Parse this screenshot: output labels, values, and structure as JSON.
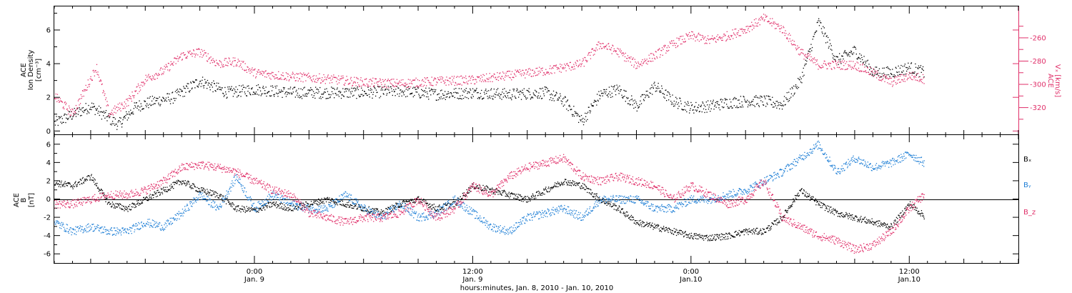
{
  "colors": {
    "black": "#000000",
    "blue": "#1f7fd6",
    "pink": "#e0306a"
  },
  "xaxis": {
    "title": "hours:minutes, Jan. 8, 2010 - Jan. 10, 2010",
    "ticks": [
      {
        "t": 24,
        "time": "0:00",
        "date": "Jan. 9"
      },
      {
        "t": 36,
        "time": "12:00",
        "date": "Jan. 9"
      },
      {
        "t": 48,
        "time": "0:00",
        "date": "Jan.10"
      },
      {
        "t": 60,
        "time": "12:00",
        "date": "Jan.10"
      }
    ],
    "range_hours": [
      13.0,
      66.0
    ]
  },
  "panel1": {
    "ylabel_line1": "ACE",
    "ylabel_line2": "Ion Density",
    "ylabel_units": "[cm⁻³]",
    "ylim": [
      -0.2,
      7.4
    ],
    "yticks": [
      "0",
      "2",
      "4",
      "6"
    ],
    "right_ylabel_line1": "ACE",
    "right_ylabel_line2": "Vₓ [km/s]",
    "right_ylim": [
      -233,
      -343
    ],
    "right_yticks": [
      "-260",
      "-280",
      "-300",
      "-320"
    ]
  },
  "panel2": {
    "ylabel_line1": "ACE",
    "ylabel_line2": "B",
    "ylabel_units": "[nT]",
    "ylim": [
      -7,
      7
    ],
    "yticks": [
      "6",
      "4",
      "2",
      "0",
      "-2",
      "-4",
      "-6"
    ],
    "legend": [
      {
        "label": "Bₓ",
        "color": "#000000"
      },
      {
        "label": "Bᵧ",
        "color": "#1f7fd6"
      },
      {
        "label": "B_z",
        "color": "#e0306a"
      }
    ],
    "legend_placement": "right"
  },
  "chart_data": [
    {
      "type": "scatter",
      "title": "",
      "xlabel": "hours:minutes, Jan. 8, 2010 - Jan. 10, 2010",
      "ylabel": "ACE Ion Density [cm⁻³]",
      "y2label": "ACE Vx [km/s]",
      "ylim": [
        -0.2,
        7.4
      ],
      "y2lim": [
        -343,
        -233
      ],
      "series": [
        {
          "name": "Ion Density",
          "axis": "left",
          "x_hours": [
            13.0,
            15.0,
            16.5,
            17.5,
            18.5,
            19.5,
            21.0,
            22.5,
            24.0,
            26.0,
            28.0,
            30.0,
            32.0,
            34.0,
            36.0,
            38.0,
            40.0,
            41.0,
            42.0,
            43.0,
            44.0,
            45.0,
            46.0,
            47.0,
            48.0,
            49.0,
            50.0,
            51.0,
            52.0,
            53.0,
            54.0,
            55.0,
            56.0,
            57.0,
            58.0,
            59.0,
            60.0,
            60.8
          ],
          "values": [
            0.5,
            1.5,
            0.4,
            1.5,
            1.8,
            2.0,
            3.0,
            2.3,
            2.5,
            2.3,
            2.3,
            2.3,
            2.4,
            2.2,
            2.3,
            2.2,
            2.3,
            1.8,
            0.6,
            2.2,
            2.5,
            1.5,
            2.7,
            1.8,
            1.4,
            1.5,
            1.7,
            1.8,
            1.8,
            1.6,
            3.0,
            6.5,
            4.2,
            4.8,
            3.5,
            3.5,
            3.8,
            3.5
          ]
        },
        {
          "name": "Vx",
          "axis": "right",
          "x_hours": [
            13.0,
            14.0,
            15.3,
            16.0,
            17.0,
            18.0,
            19.0,
            20.0,
            21.0,
            22.0,
            23.0,
            24.0,
            26.0,
            28.0,
            30.0,
            32.0,
            34.0,
            36.0,
            38.0,
            40.0,
            42.0,
            43.0,
            44.0,
            45.0,
            46.0,
            47.0,
            48.0,
            49.0,
            50.0,
            51.0,
            52.0,
            53.0,
            54.0,
            55.0,
            56.0,
            57.0,
            58.0,
            59.0,
            60.0,
            60.8
          ],
          "values": [
            -310,
            -325,
            -285,
            -325,
            -315,
            -295,
            -288,
            -275,
            -272,
            -282,
            -280,
            -290,
            -293,
            -295,
            -298,
            -299,
            -297,
            -296,
            -292,
            -288,
            -282,
            -265,
            -272,
            -283,
            -275,
            -265,
            -258,
            -262,
            -258,
            -252,
            -243,
            -252,
            -272,
            -283,
            -283,
            -283,
            -290,
            -298,
            -292,
            -295
          ]
        }
      ]
    },
    {
      "type": "scatter",
      "title": "",
      "xlabel": "hours:minutes, Jan. 8, 2010 - Jan. 10, 2010",
      "ylabel": "ACE B [nT]",
      "ylim": [
        -7,
        7
      ],
      "grid": false,
      "zero_line": true,
      "series": [
        {
          "name": "Bx",
          "x_hours": [
            13.0,
            14.0,
            15.0,
            16.0,
            17.0,
            18.0,
            19.0,
            20.0,
            21.0,
            22.0,
            23.0,
            24.0,
            25.0,
            26.0,
            27.0,
            28.0,
            29.0,
            30.0,
            31.0,
            32.0,
            33.0,
            34.0,
            35.0,
            36.0,
            37.0,
            38.0,
            39.0,
            40.0,
            41.0,
            42.0,
            43.0,
            44.0,
            45.0,
            46.0,
            47.0,
            48.0,
            49.0,
            50.0,
            51.0,
            52.0,
            53.0,
            54.0,
            55.0,
            56.0,
            57.0,
            58.0,
            59.0,
            60.0,
            60.8
          ],
          "values": [
            1.8,
            1.5,
            2.5,
            -0.5,
            -1.0,
            0.0,
            1.0,
            2.0,
            1.0,
            0.5,
            -1.0,
            -1.2,
            -0.5,
            -1.0,
            -0.5,
            0.0,
            -0.5,
            -1.0,
            -1.5,
            -0.5,
            0.0,
            -1.0,
            -0.5,
            1.5,
            1.0,
            0.5,
            0.0,
            1.0,
            2.0,
            1.5,
            0.0,
            -1.0,
            -2.5,
            -3.0,
            -3.5,
            -4.0,
            -4.2,
            -4.0,
            -3.5,
            -3.5,
            -2.0,
            1.0,
            -0.5,
            -1.5,
            -2.0,
            -2.5,
            -3.0,
            -0.5,
            -1.8
          ]
        },
        {
          "name": "By",
          "x_hours": [
            13.0,
            14.0,
            15.0,
            16.0,
            17.0,
            18.0,
            19.0,
            20.0,
            21.0,
            22.0,
            23.0,
            24.0,
            25.0,
            26.0,
            27.0,
            28.0,
            29.0,
            30.0,
            31.0,
            32.0,
            33.0,
            34.0,
            35.0,
            36.0,
            37.0,
            38.0,
            39.0,
            40.0,
            41.0,
            42.0,
            43.0,
            44.0,
            45.0,
            46.0,
            47.0,
            48.0,
            49.0,
            50.0,
            51.0,
            52.0,
            53.0,
            54.0,
            55.0,
            56.0,
            57.0,
            58.0,
            59.0,
            60.0,
            60.8
          ],
          "values": [
            -2.5,
            -3.5,
            -3.0,
            -3.5,
            -3.5,
            -2.5,
            -3.0,
            -1.5,
            0.5,
            -1.0,
            2.5,
            -1.0,
            0.5,
            -0.5,
            -1.0,
            -1.0,
            0.5,
            -1.0,
            -2.0,
            -0.5,
            -2.0,
            -1.5,
            0.0,
            -1.5,
            -3.0,
            -3.5,
            -2.0,
            -1.5,
            -1.0,
            -2.0,
            0.0,
            0.0,
            0.0,
            -1.0,
            -1.0,
            0.0,
            0.0,
            0.5,
            1.0,
            2.0,
            3.0,
            4.5,
            6.0,
            3.0,
            4.5,
            3.5,
            4.0,
            5.0,
            4.0
          ]
        },
        {
          "name": "Bz",
          "x_hours": [
            13.0,
            14.0,
            15.0,
            16.0,
            17.0,
            18.0,
            19.0,
            20.0,
            21.0,
            22.0,
            23.0,
            24.0,
            25.0,
            26.0,
            27.0,
            28.0,
            29.0,
            30.0,
            31.0,
            32.0,
            33.0,
            34.0,
            35.0,
            36.0,
            37.0,
            38.0,
            39.0,
            40.0,
            41.0,
            42.0,
            43.0,
            44.0,
            45.0,
            46.0,
            47.0,
            48.0,
            49.0,
            50.0,
            51.0,
            52.0,
            53.0,
            54.0,
            55.0,
            56.0,
            57.0,
            58.0,
            59.0,
            60.0,
            60.8
          ],
          "values": [
            -0.5,
            -0.5,
            0.0,
            0.5,
            0.5,
            1.0,
            2.0,
            3.5,
            3.8,
            3.5,
            3.0,
            2.0,
            1.0,
            0.5,
            -1.5,
            -2.0,
            -2.5,
            -2.0,
            -2.0,
            -1.5,
            0.0,
            -2.0,
            -1.0,
            1.5,
            0.5,
            2.5,
            3.5,
            4.0,
            4.5,
            2.5,
            2.0,
            2.5,
            2.0,
            1.5,
            0.0,
            1.5,
            0.5,
            -0.5,
            0.0,
            2.0,
            -2.0,
            -3.0,
            -4.0,
            -4.5,
            -5.5,
            -5.0,
            -3.5,
            -1.0,
            0.5
          ]
        }
      ]
    }
  ]
}
